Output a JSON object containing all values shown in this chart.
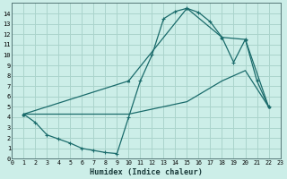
{
  "xlabel": "Humidex (Indice chaleur)",
  "bg_color": "#cceee8",
  "grid_color": "#aad4cc",
  "line_color": "#1a6b6b",
  "xlim": [
    0,
    23
  ],
  "ylim": [
    0,
    15
  ],
  "xticks": [
    0,
    1,
    2,
    3,
    4,
    5,
    6,
    7,
    8,
    9,
    10,
    11,
    12,
    13,
    14,
    15,
    16,
    17,
    18,
    19,
    20,
    21,
    22,
    23
  ],
  "yticks": [
    0,
    1,
    2,
    3,
    4,
    5,
    6,
    7,
    8,
    9,
    10,
    11,
    12,
    13,
    14
  ],
  "line1_x": [
    1,
    2,
    3,
    4,
    5,
    6,
    7,
    8,
    9,
    10,
    11,
    12,
    13,
    14,
    15,
    16,
    17,
    18,
    19,
    20,
    21,
    22
  ],
  "line1_y": [
    4.3,
    3.5,
    2.3,
    1.9,
    1.5,
    1.0,
    0.8,
    0.6,
    0.5,
    4.0,
    7.5,
    10.0,
    13.5,
    14.2,
    14.5,
    14.1,
    13.2,
    11.7,
    9.3,
    11.5,
    7.5,
    5.0
  ],
  "line2_x": [
    1,
    10,
    15,
    18,
    20,
    22
  ],
  "line2_y": [
    4.3,
    7.5,
    14.5,
    11.7,
    11.5,
    5.0
  ],
  "line3_x": [
    1,
    10,
    15,
    18,
    20,
    22
  ],
  "line3_y": [
    4.3,
    4.3,
    5.5,
    7.5,
    8.5,
    5.0
  ],
  "marker": "+"
}
